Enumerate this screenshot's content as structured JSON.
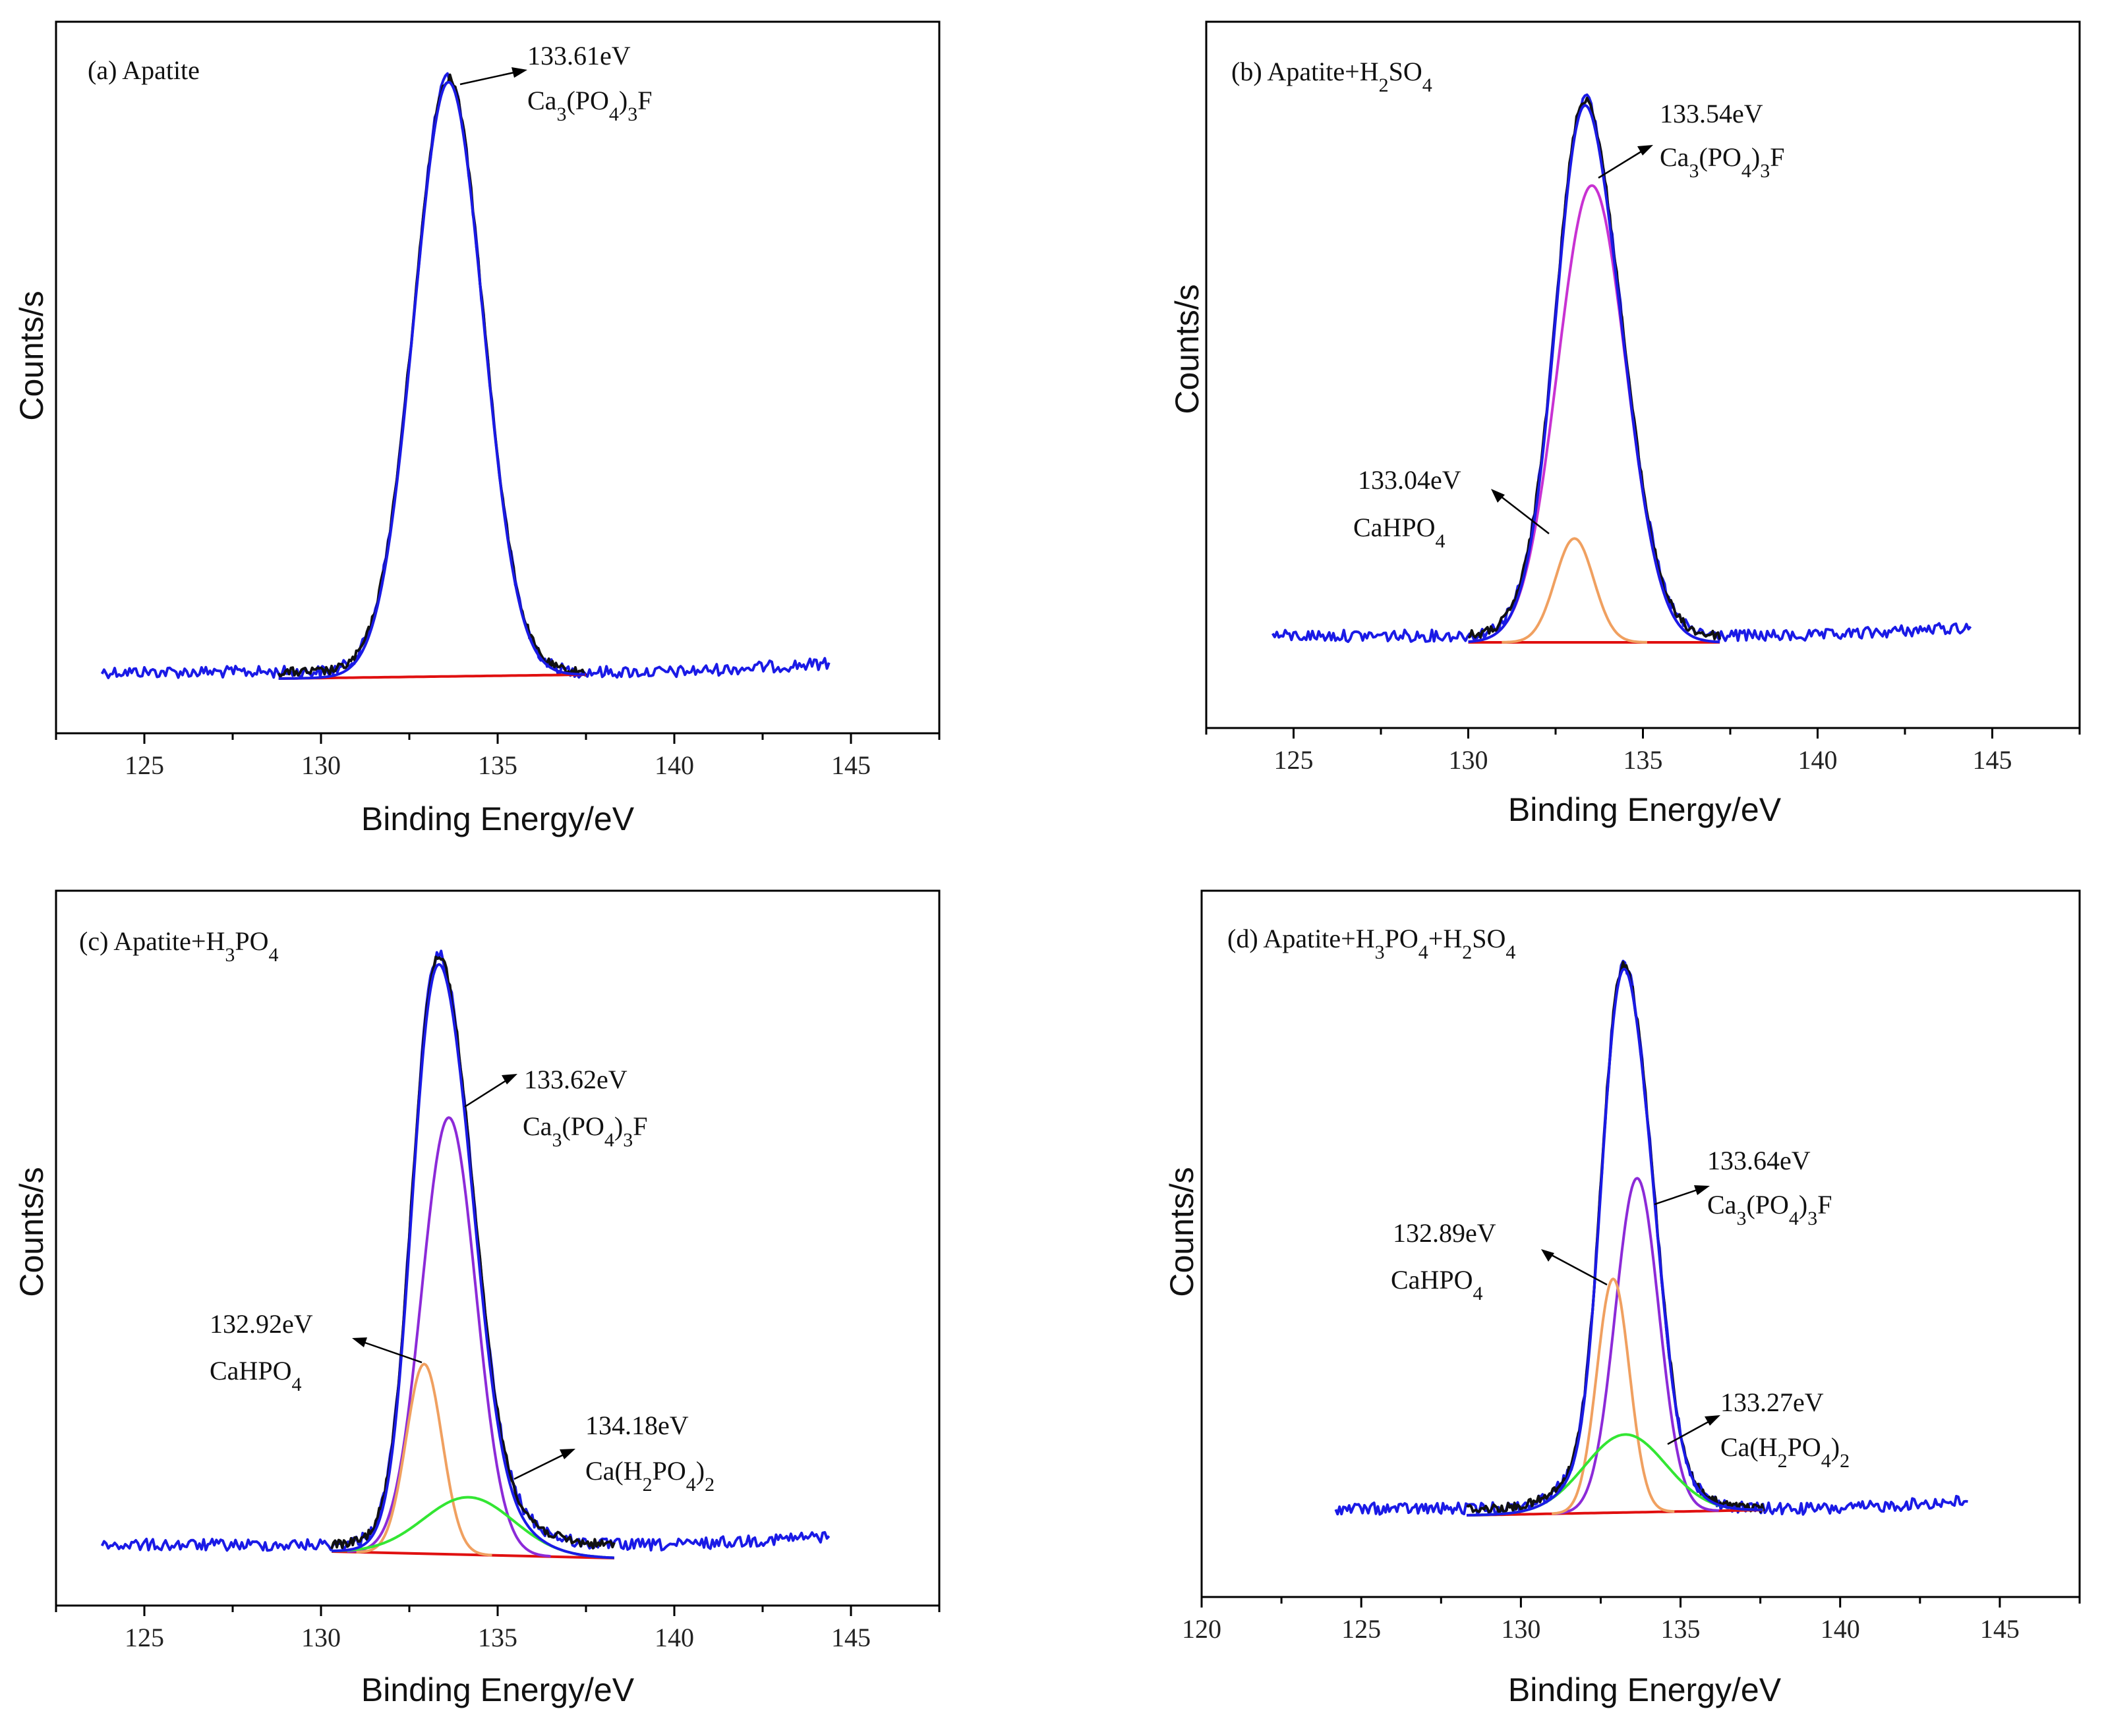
{
  "figure": {
    "xlabel": "Binding Energy/eV",
    "ylabel": "Counts/s",
    "colors": {
      "raw": "#111111",
      "envelope": "#1a1ae6",
      "background": "#e01010",
      "ca3po43f": "#c832d2",
      "ca3po43f_c": "#8c2ad8",
      "cahpo4": "#f0a060",
      "cah2po42": "#33e633"
    }
  },
  "chart_data": [
    {
      "type": "line",
      "title": "(a) Apatite",
      "xlabel": "Binding Energy/eV",
      "ylabel": "Counts/s",
      "xlim": [
        122.5,
        147.5
      ],
      "xticks": [
        125,
        130,
        135,
        140,
        145
      ],
      "peaks": [
        {
          "position": 133.61,
          "height": 1.0,
          "fwhm": 2.3,
          "label": "133.61eV",
          "compound": "Ca3(PO4)3F"
        }
      ],
      "annotations": [
        {
          "energy": "133.61eV",
          "compound": "Ca3(PO4)3F"
        }
      ],
      "series": [
        "raw spectrum",
        "fitted envelope",
        "background"
      ]
    },
    {
      "type": "line",
      "title": "(b) Apatite+H2SO4",
      "xlabel": "Binding Energy/eV",
      "ylabel": "Counts/s",
      "xlim": [
        122.5,
        147.5
      ],
      "xticks": [
        125,
        130,
        135,
        140,
        145
      ],
      "peaks": [
        {
          "position": 133.54,
          "height": 0.88,
          "fwhm": 2.3,
          "label": "133.54eV",
          "compound": "Ca3(PO4)3F"
        },
        {
          "position": 133.04,
          "height": 0.2,
          "fwhm": 1.3,
          "label": "133.04eV",
          "compound": "CaHPO4"
        }
      ],
      "annotations": [
        {
          "energy": "133.54eV",
          "compound": "Ca3(PO4)3F"
        },
        {
          "energy": "133.04eV",
          "compound": "CaHPO4"
        }
      ],
      "series": [
        "raw spectrum",
        "fitted envelope",
        "Ca3(PO4)3F component",
        "CaHPO4 component",
        "background"
      ]
    },
    {
      "type": "line",
      "title": "(c) Apatite+H3PO4",
      "xlabel": "Binding Energy/eV",
      "ylabel": "Counts/s",
      "xlim": [
        122.5,
        147.5
      ],
      "xticks": [
        125,
        130,
        135,
        140,
        145
      ],
      "peaks": [
        {
          "position": 133.62,
          "height": 0.76,
          "fwhm": 1.8,
          "label": "133.62eV",
          "compound": "Ca3(PO4)3F"
        },
        {
          "position": 132.92,
          "height": 0.33,
          "fwhm": 1.2,
          "label": "132.92eV",
          "compound": "CaHPO4"
        },
        {
          "position": 134.18,
          "height": 0.1,
          "fwhm": 3.0,
          "label": "134.18eV",
          "compound": "Ca(H2PO4)2"
        }
      ],
      "annotations": [
        {
          "energy": "133.62eV",
          "compound": "Ca3(PO4)3F"
        },
        {
          "energy": "132.92eV",
          "compound": "CaHPO4"
        },
        {
          "energy": "134.18eV",
          "compound": "Ca(H2PO4)2"
        }
      ],
      "series": [
        "raw spectrum",
        "fitted envelope",
        "Ca3(PO4)3F component",
        "CaHPO4 component",
        "Ca(H2PO4)2 component",
        "background"
      ]
    },
    {
      "type": "line",
      "title": "(d) Apatite+H3PO4+H2SO4",
      "xlabel": "Binding Energy/eV",
      "ylabel": "Counts/s",
      "xlim": [
        120,
        147.5
      ],
      "xticks": [
        120,
        125,
        130,
        135,
        140,
        145
      ],
      "peaks": [
        {
          "position": 133.64,
          "height": 0.6,
          "fwhm": 1.6,
          "label": "133.64eV",
          "compound": "Ca3(PO4)3F"
        },
        {
          "position": 132.89,
          "height": 0.42,
          "fwhm": 1.2,
          "label": "132.89eV",
          "compound": "CaHPO4"
        },
        {
          "position": 133.27,
          "height": 0.14,
          "fwhm": 3.0,
          "label": "133.27eV",
          "compound": "Ca(H2PO4)2"
        }
      ],
      "annotations": [
        {
          "energy": "133.64eV",
          "compound": "Ca3(PO4)3F"
        },
        {
          "energy": "132.89eV",
          "compound": "CaHPO4"
        },
        {
          "energy": "133.27eV",
          "compound": "Ca(H2PO4)2"
        }
      ],
      "series": [
        "raw spectrum",
        "fitted envelope",
        "Ca3(PO4)3F component",
        "CaHPO4 component",
        "Ca(H2PO4)2 component",
        "background"
      ]
    }
  ]
}
